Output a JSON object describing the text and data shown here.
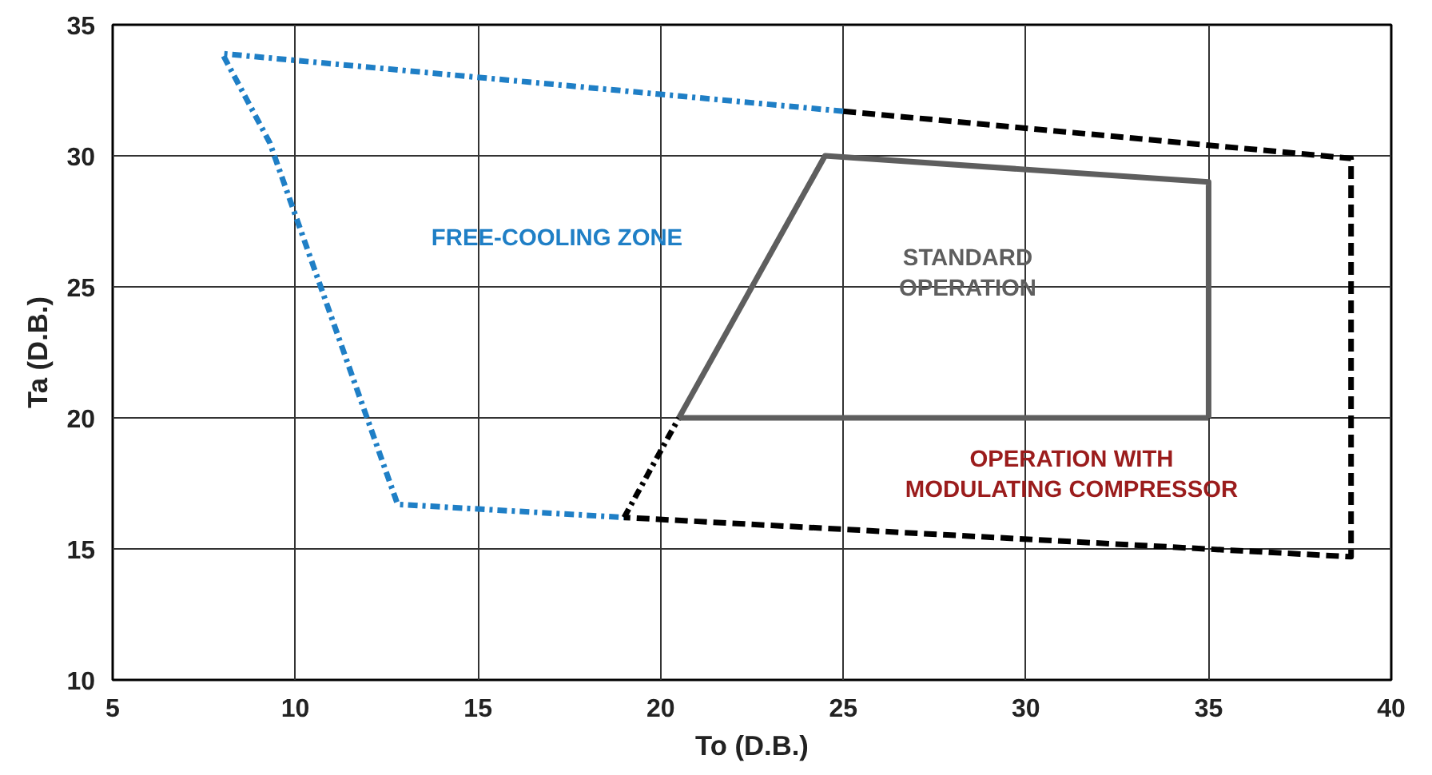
{
  "chart_data": {
    "type": "line",
    "xlabel": "To (D.B.)",
    "ylabel": "Ta (D.B.)",
    "xlim": [
      5,
      40
    ],
    "ylim": [
      10,
      35
    ],
    "xticks": [
      5,
      10,
      15,
      20,
      25,
      30,
      35,
      40
    ],
    "yticks": [
      10,
      15,
      20,
      25,
      30,
      35
    ],
    "grid": true,
    "series": [
      {
        "color": "#1f7fc6",
        "line_style": "dashdot",
        "x": [
          25,
          8,
          9.3,
          12.8,
          19
        ],
        "values": [
          31.7,
          33.9,
          30.5,
          16.7,
          16.2
        ]
      },
      {
        "color": "#000000",
        "line_style": "dashdot",
        "x": [
          19,
          20.5
        ],
        "values": [
          16.2,
          20
        ]
      },
      {
        "color": "#000000",
        "line_style": "dashed",
        "x": [
          25,
          38.9,
          38.9,
          19
        ],
        "values": [
          31.7,
          29.9,
          14.7,
          16.2
        ]
      },
      {
        "color": "#5e5e5e",
        "line_style": "solid",
        "x": [
          20.5,
          24.5,
          35,
          35
        ],
        "values": [
          20,
          30,
          29,
          20
        ]
      },
      {
        "color": "#5e5e5e",
        "line_style": "solid",
        "x": [
          35,
          20.5
        ],
        "values": [
          20,
          20
        ]
      }
    ],
    "annotations": [
      "FREE-COOLING ZONE",
      "STANDARD\nOPERATION",
      "OPERATION WITH\nMODULATING COMPRESSOR"
    ]
  }
}
